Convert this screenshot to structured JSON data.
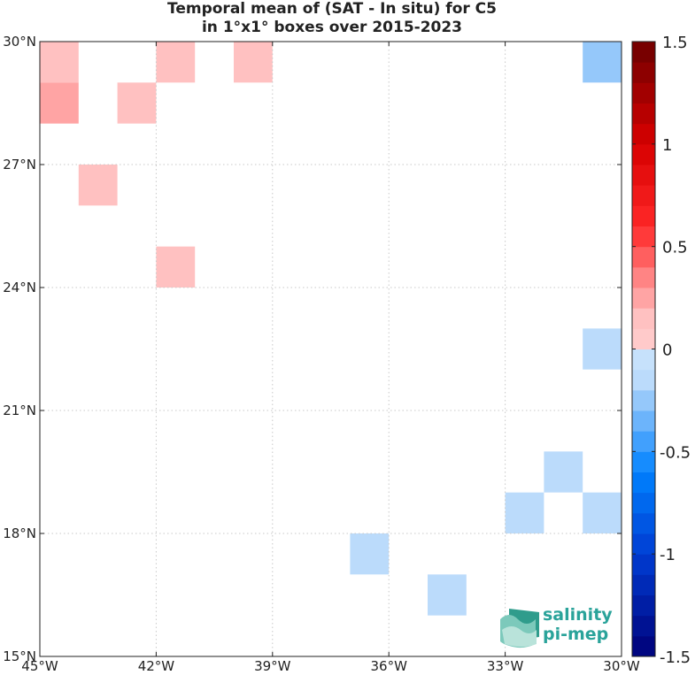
{
  "chart_data": {
    "type": "heatmap",
    "title_line1": "Temporal mean of (SAT - In situ) for C5",
    "title_line2": "in 1°x1° boxes over 2015-2023",
    "xlim": [
      -45,
      -30
    ],
    "ylim": [
      15,
      30
    ],
    "x_ticks": [
      {
        "value": -45,
        "label": "45°W"
      },
      {
        "value": -42,
        "label": "42°W"
      },
      {
        "value": -39,
        "label": "39°W"
      },
      {
        "value": -36,
        "label": "36°W"
      },
      {
        "value": -33,
        "label": "33°W"
      },
      {
        "value": -30,
        "label": "30°W"
      }
    ],
    "y_ticks": [
      {
        "value": 15,
        "label": "15°N"
      },
      {
        "value": 18,
        "label": "18°N"
      },
      {
        "value": 21,
        "label": "21°N"
      },
      {
        "value": 24,
        "label": "24°N"
      },
      {
        "value": 27,
        "label": "27°N"
      },
      {
        "value": 30,
        "label": "30°N"
      }
    ],
    "grid": true,
    "cells": [
      {
        "lon": -45,
        "lat": 29,
        "value": 0.15
      },
      {
        "lon": -42,
        "lat": 29,
        "value": 0.15
      },
      {
        "lon": -40,
        "lat": 29,
        "value": 0.15
      },
      {
        "lon": -31,
        "lat": 29,
        "value": -0.25
      },
      {
        "lon": -45,
        "lat": 28,
        "value": 0.25
      },
      {
        "lon": -43,
        "lat": 28,
        "value": 0.15
      },
      {
        "lon": -44,
        "lat": 26,
        "value": 0.15
      },
      {
        "lon": -42,
        "lat": 24,
        "value": 0.15
      },
      {
        "lon": -31,
        "lat": 22,
        "value": -0.15
      },
      {
        "lon": -32,
        "lat": 19,
        "value": -0.15
      },
      {
        "lon": -33,
        "lat": 18,
        "value": -0.15
      },
      {
        "lon": -31,
        "lat": 18,
        "value": -0.15
      },
      {
        "lon": -37,
        "lat": 17,
        "value": -0.15
      },
      {
        "lon": -35,
        "lat": 16,
        "value": -0.15
      }
    ],
    "colorbar": {
      "min": -1.5,
      "max": 1.5,
      "steps": 30,
      "ticks": [
        {
          "value": 1.5,
          "label": "1.5"
        },
        {
          "value": 1,
          "label": "1"
        },
        {
          "value": 0.5,
          "label": "0.5"
        },
        {
          "value": 0,
          "label": "0"
        },
        {
          "value": -0.5,
          "label": "-0.5"
        },
        {
          "value": -1,
          "label": "-1"
        },
        {
          "value": -1.5,
          "label": "-1.5"
        }
      ]
    }
  },
  "logo": {
    "line1": "salinity",
    "line2": "pi-mep",
    "color": "#2aa39a"
  }
}
